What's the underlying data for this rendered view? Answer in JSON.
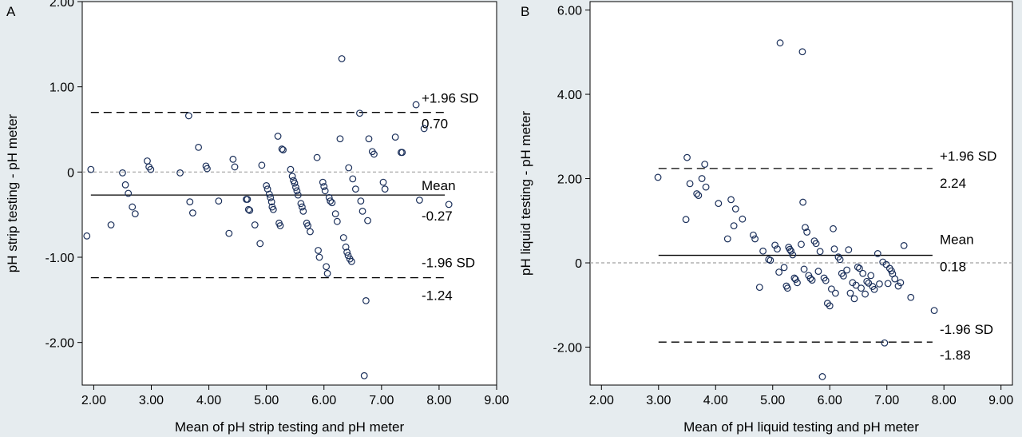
{
  "chart_data": [
    {
      "type": "scatter",
      "panel_label": "A",
      "xlabel": "Mean of pH strip testing and pH meter",
      "ylabel": "pH strip testing - pH meter",
      "xlim": [
        1.8,
        9.0
      ],
      "ylim": [
        -2.5,
        2.0
      ],
      "xticks": [
        "2.00",
        "3.00",
        "4.00",
        "5.00",
        "6.00",
        "7.00",
        "8.00",
        "9.00"
      ],
      "yticks": [
        "-2.00",
        "-1.00",
        "0",
        "1.00",
        "2.00"
      ],
      "reference_lines": [
        {
          "value": 0.7,
          "style": "dashed",
          "label": "+1.96 SD",
          "value_label": "0.70",
          "x_range": [
            1.95,
            8.1
          ]
        },
        {
          "value": -0.27,
          "style": "solid",
          "label": "Mean",
          "value_label": "-0.27",
          "x_range": [
            1.95,
            8.1
          ]
        },
        {
          "value": -1.24,
          "style": "dashed",
          "label": "-1.96 SD",
          "value_label": "-1.24",
          "x_range": [
            1.95,
            8.1
          ]
        }
      ],
      "zero_line": {
        "value": 0,
        "style": "dotted",
        "color": "#a0a0a0"
      },
      "points": [
        [
          1.88,
          -0.75
        ],
        [
          1.95,
          0.03
        ],
        [
          2.3,
          -0.62
        ],
        [
          2.5,
          -0.01
        ],
        [
          2.55,
          -0.15
        ],
        [
          2.6,
          -0.25
        ],
        [
          2.67,
          -0.41
        ],
        [
          2.72,
          -0.49
        ],
        [
          2.93,
          0.13
        ],
        [
          2.96,
          0.06
        ],
        [
          2.99,
          0.03
        ],
        [
          3.5,
          -0.01
        ],
        [
          3.65,
          0.66
        ],
        [
          3.67,
          -0.35
        ],
        [
          3.72,
          -0.48
        ],
        [
          3.82,
          0.29
        ],
        [
          3.95,
          0.07
        ],
        [
          3.97,
          0.04
        ],
        [
          4.17,
          -0.34
        ],
        [
          4.35,
          -0.72
        ],
        [
          4.42,
          0.15
        ],
        [
          4.45,
          0.06
        ],
        [
          4.65,
          -0.32
        ],
        [
          4.67,
          -0.32
        ],
        [
          4.69,
          -0.44
        ],
        [
          4.71,
          -0.45
        ],
        [
          4.8,
          -0.62
        ],
        [
          4.89,
          -0.84
        ],
        [
          4.92,
          0.08
        ],
        [
          5.0,
          -0.16
        ],
        [
          5.02,
          -0.2
        ],
        [
          5.05,
          -0.26
        ],
        [
          5.07,
          -0.3
        ],
        [
          5.09,
          -0.35
        ],
        [
          5.1,
          -0.41
        ],
        [
          5.12,
          -0.44
        ],
        [
          5.2,
          0.42
        ],
        [
          5.22,
          -0.6
        ],
        [
          5.24,
          -0.63
        ],
        [
          5.27,
          0.27
        ],
        [
          5.29,
          0.26
        ],
        [
          5.42,
          0.03
        ],
        [
          5.45,
          -0.05
        ],
        [
          5.47,
          -0.1
        ],
        [
          5.49,
          -0.13
        ],
        [
          5.51,
          -0.18
        ],
        [
          5.53,
          -0.22
        ],
        [
          5.55,
          -0.27
        ],
        [
          5.6,
          -0.37
        ],
        [
          5.62,
          -0.41
        ],
        [
          5.64,
          -0.46
        ],
        [
          5.7,
          -0.6
        ],
        [
          5.72,
          -0.63
        ],
        [
          5.76,
          -0.7
        ],
        [
          5.88,
          0.17
        ],
        [
          5.9,
          -0.92
        ],
        [
          5.92,
          -1.0
        ],
        [
          5.98,
          -0.12
        ],
        [
          6.0,
          -0.17
        ],
        [
          6.02,
          -0.22
        ],
        [
          6.04,
          -1.11
        ],
        [
          6.06,
          -1.19
        ],
        [
          6.09,
          -0.3
        ],
        [
          6.11,
          -0.34
        ],
        [
          6.14,
          -0.36
        ],
        [
          6.2,
          -0.49
        ],
        [
          6.23,
          -0.58
        ],
        [
          6.28,
          0.39
        ],
        [
          6.31,
          1.33
        ],
        [
          6.34,
          -0.77
        ],
        [
          6.38,
          -0.88
        ],
        [
          6.4,
          -0.94
        ],
        [
          6.42,
          -0.98
        ],
        [
          6.45,
          -1.02
        ],
        [
          6.48,
          -1.05
        ],
        [
          6.43,
          0.05
        ],
        [
          6.5,
          -0.08
        ],
        [
          6.55,
          -0.2
        ],
        [
          6.62,
          0.69
        ],
        [
          6.64,
          -0.34
        ],
        [
          6.67,
          -0.46
        ],
        [
          6.7,
          -2.39
        ],
        [
          6.73,
          -1.51
        ],
        [
          6.76,
          -0.57
        ],
        [
          6.78,
          0.39
        ],
        [
          6.84,
          0.24
        ],
        [
          6.87,
          0.21
        ],
        [
          7.03,
          -0.12
        ],
        [
          7.06,
          -0.2
        ],
        [
          7.24,
          0.41
        ],
        [
          7.34,
          0.23
        ],
        [
          7.36,
          0.23
        ],
        [
          7.6,
          0.79
        ],
        [
          7.66,
          -0.33
        ],
        [
          7.74,
          0.51
        ],
        [
          8.17,
          -0.38
        ]
      ]
    },
    {
      "type": "scatter",
      "panel_label": "B",
      "xlabel": "Mean of pH liquid testing and pH meter",
      "ylabel": "pH liquid testing - pH meter",
      "xlim": [
        1.8,
        9.2
      ],
      "ylim": [
        -2.9,
        6.2
      ],
      "xticks": [
        "2.00",
        "3.00",
        "4.00",
        "5.00",
        "6.00",
        "7.00",
        "8.00",
        "9.00"
      ],
      "yticks": [
        "-2.00",
        "0",
        "2.00",
        "4.00",
        "6.00"
      ],
      "reference_lines": [
        {
          "value": 2.24,
          "style": "dashed",
          "label": "+1.96 SD",
          "value_label": "2.24",
          "x_range": [
            3.0,
            7.8
          ]
        },
        {
          "value": 0.18,
          "style": "solid",
          "label": "Mean",
          "value_label": "0.18",
          "x_range": [
            3.0,
            7.8
          ]
        },
        {
          "value": -1.88,
          "style": "dashed",
          "label": "-1.96 SD",
          "value_label": "-1.88",
          "x_range": [
            3.0,
            7.8
          ]
        }
      ],
      "zero_line": {
        "value": 0,
        "style": "dotted",
        "color": "#a0a0a0"
      },
      "points": [
        [
          2.99,
          2.03
        ],
        [
          3.48,
          1.03
        ],
        [
          3.5,
          2.5
        ],
        [
          3.55,
          1.88
        ],
        [
          3.67,
          1.64
        ],
        [
          3.7,
          1.6
        ],
        [
          3.76,
          2.0
        ],
        [
          3.81,
          2.34
        ],
        [
          3.83,
          1.8
        ],
        [
          4.05,
          1.41
        ],
        [
          4.21,
          0.57
        ],
        [
          4.27,
          1.5
        ],
        [
          4.32,
          0.88
        ],
        [
          4.35,
          1.28
        ],
        [
          4.47,
          1.04
        ],
        [
          4.66,
          0.66
        ],
        [
          4.69,
          0.57
        ],
        [
          4.77,
          -0.58
        ],
        [
          4.83,
          0.28
        ],
        [
          4.93,
          0.08
        ],
        [
          4.96,
          0.06
        ],
        [
          5.04,
          0.42
        ],
        [
          5.08,
          0.33
        ],
        [
          5.11,
          -0.22
        ],
        [
          5.13,
          5.22
        ],
        [
          5.2,
          -0.11
        ],
        [
          5.24,
          -0.55
        ],
        [
          5.26,
          -0.6
        ],
        [
          5.28,
          0.37
        ],
        [
          5.3,
          0.32
        ],
        [
          5.32,
          0.28
        ],
        [
          5.35,
          0.19
        ],
        [
          5.38,
          -0.36
        ],
        [
          5.4,
          -0.39
        ],
        [
          5.43,
          -0.47
        ],
        [
          5.5,
          0.44
        ],
        [
          5.52,
          5.01
        ],
        [
          5.53,
          1.44
        ],
        [
          5.55,
          -0.15
        ],
        [
          5.57,
          0.84
        ],
        [
          5.6,
          0.73
        ],
        [
          5.63,
          -0.3
        ],
        [
          5.66,
          -0.37
        ],
        [
          5.69,
          -0.41
        ],
        [
          5.73,
          0.52
        ],
        [
          5.76,
          0.46
        ],
        [
          5.8,
          -0.2
        ],
        [
          5.83,
          0.27
        ],
        [
          5.87,
          -2.7
        ],
        [
          5.9,
          -0.36
        ],
        [
          5.93,
          -0.42
        ],
        [
          5.96,
          -0.96
        ],
        [
          6.0,
          -1.02
        ],
        [
          6.03,
          -0.62
        ],
        [
          6.06,
          0.81
        ],
        [
          6.08,
          0.33
        ],
        [
          6.1,
          -0.72
        ],
        [
          6.15,
          0.14
        ],
        [
          6.18,
          0.08
        ],
        [
          6.21,
          -0.25
        ],
        [
          6.24,
          -0.31
        ],
        [
          6.3,
          -0.17
        ],
        [
          6.33,
          0.31
        ],
        [
          6.36,
          -0.72
        ],
        [
          6.4,
          -0.47
        ],
        [
          6.43,
          -0.85
        ],
        [
          6.46,
          -0.53
        ],
        [
          6.49,
          -0.1
        ],
        [
          6.52,
          -0.13
        ],
        [
          6.55,
          -0.6
        ],
        [
          6.58,
          -0.25
        ],
        [
          6.62,
          -0.74
        ],
        [
          6.65,
          -0.44
        ],
        [
          6.68,
          -0.48
        ],
        [
          6.72,
          -0.3
        ],
        [
          6.75,
          -0.56
        ],
        [
          6.78,
          -0.63
        ],
        [
          6.84,
          0.22
        ],
        [
          6.87,
          -0.5
        ],
        [
          6.93,
          0.02
        ],
        [
          6.96,
          -1.9
        ],
        [
          6.99,
          -0.04
        ],
        [
          7.02,
          -0.49
        ],
        [
          7.05,
          -0.13
        ],
        [
          7.08,
          -0.19
        ],
        [
          7.1,
          -0.26
        ],
        [
          7.14,
          -0.38
        ],
        [
          7.2,
          -0.55
        ],
        [
          7.24,
          -0.47
        ],
        [
          7.3,
          0.41
        ],
        [
          7.42,
          -0.82
        ],
        [
          7.83,
          -1.13
        ]
      ]
    }
  ]
}
